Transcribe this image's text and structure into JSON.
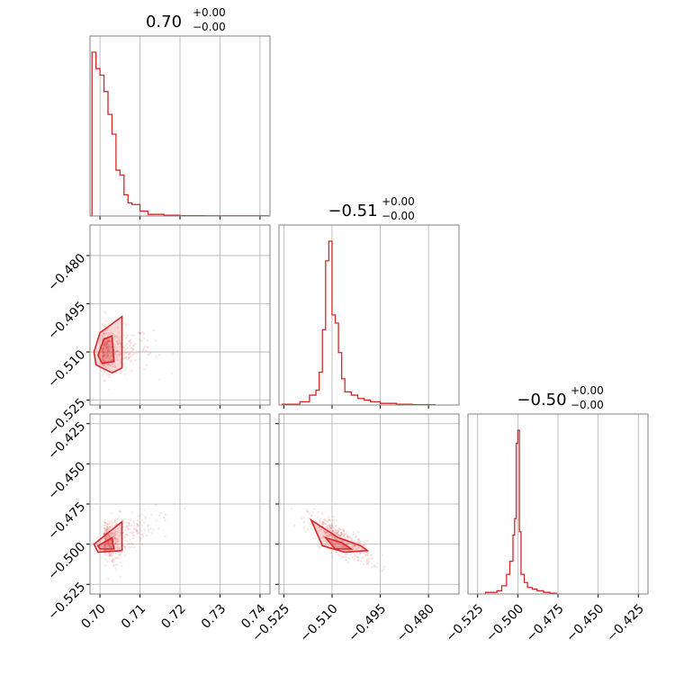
{
  "chart_data": {
    "type": "corner",
    "color": "#d62728",
    "parameters": [
      {
        "title": {
          "value": "0.70",
          "plus": "+0.00",
          "minus": "−0.00"
        },
        "range": [
          0.6975,
          0.7425
        ],
        "ticks": [
          0.7,
          0.71,
          0.72,
          0.73,
          0.74
        ],
        "tick_labels": [
          "0.70",
          "0.71",
          "0.72",
          "0.73",
          "0.74"
        ],
        "hist": {
          "edges": [
            0.698,
            0.699,
            0.7,
            0.701,
            0.702,
            0.703,
            0.704,
            0.705,
            0.706,
            0.707,
            0.708,
            0.71,
            0.712,
            0.714,
            0.716,
            0.72,
            0.726,
            0.742
          ],
          "counts": [
            1.0,
            0.9,
            0.86,
            0.76,
            0.62,
            0.5,
            0.28,
            0.25,
            0.13,
            0.08,
            0.07,
            0.03,
            0.01,
            0.01,
            0.005,
            0.002,
            0.001
          ]
        }
      },
      {
        "title": {
          "value": "−0.51",
          "plus": "+0.00",
          "minus": "−0.00"
        },
        "range": [
          -0.5265,
          -0.4705
        ],
        "ticks": [
          -0.525,
          -0.51,
          -0.495,
          -0.48
        ],
        "tick_labels": [
          "−0.525",
          "−0.510",
          "−0.495",
          "−0.480"
        ],
        "hist": {
          "edges": [
            -0.5255,
            -0.52,
            -0.517,
            -0.515,
            -0.514,
            -0.513,
            -0.512,
            -0.511,
            -0.51,
            -0.509,
            -0.508,
            -0.507,
            -0.506,
            -0.504,
            -0.502,
            -0.5,
            -0.498,
            -0.495,
            -0.49,
            -0.485,
            -0.478
          ],
          "counts": [
            0.005,
            0.02,
            0.06,
            0.09,
            0.2,
            0.46,
            0.88,
            1.0,
            0.55,
            0.5,
            0.32,
            0.16,
            0.08,
            0.06,
            0.04,
            0.03,
            0.02,
            0.01,
            0.005,
            0.002
          ]
        }
      },
      {
        "title": {
          "value": "−0.50",
          "plus": "+0.00",
          "minus": "−0.00"
        },
        "range": [
          -0.531,
          -0.419
        ],
        "ticks": [
          -0.525,
          -0.5,
          -0.475,
          -0.45,
          -0.425
        ],
        "tick_labels": [
          "−0.525",
          "−0.500",
          "−0.475",
          "−0.450",
          "−0.425"
        ],
        "hist": {
          "edges": [
            -0.52,
            -0.513,
            -0.51,
            -0.507,
            -0.505,
            -0.503,
            -0.502,
            -0.501,
            -0.5,
            -0.499,
            -0.498,
            -0.496,
            -0.494,
            -0.491,
            -0.488,
            -0.484,
            -0.48,
            -0.476
          ],
          "counts": [
            0.01,
            0.02,
            0.05,
            0.12,
            0.2,
            0.36,
            0.46,
            0.92,
            1.0,
            0.38,
            0.12,
            0.07,
            0.04,
            0.03,
            0.02,
            0.01,
            0.005
          ]
        }
      }
    ],
    "pairs": [
      {
        "row": 1,
        "col": 0,
        "cloud_center": [
          0.7005,
          -0.5095
        ],
        "cloud_spread": [
          0.004,
          0.006
        ],
        "contour_outer": [
          [
            0.6985,
            -0.51
          ],
          [
            0.7,
            -0.504
          ],
          [
            0.7055,
            -0.499
          ],
          [
            0.7055,
            -0.515
          ],
          [
            0.703,
            -0.5165
          ],
          [
            0.699,
            -0.514
          ]
        ],
        "contour_inner": [
          [
            0.6995,
            -0.511
          ],
          [
            0.701,
            -0.506
          ],
          [
            0.703,
            -0.505
          ],
          [
            0.7035,
            -0.513
          ],
          [
            0.7005,
            -0.5135
          ]
        ]
      },
      {
        "row": 2,
        "col": 0,
        "cloud_center": [
          0.701,
          -0.496
        ],
        "cloud_spread": [
          0.004,
          0.012
        ],
        "contour_outer": [
          [
            0.6985,
            -0.5
          ],
          [
            0.704,
            -0.489
          ],
          [
            0.7055,
            -0.486
          ],
          [
            0.7055,
            -0.504
          ],
          [
            0.6995,
            -0.505
          ]
        ],
        "contour_inner": [
          [
            0.6995,
            -0.501
          ],
          [
            0.703,
            -0.496
          ],
          [
            0.7035,
            -0.503
          ],
          [
            0.7,
            -0.503
          ]
        ]
      },
      {
        "row": 2,
        "col": 1,
        "cloud_center": [
          -0.5075,
          -0.497
        ],
        "cloud_spread": [
          0.005,
          0.012
        ],
        "contour_outer": [
          [
            -0.5165,
            -0.485
          ],
          [
            -0.508,
            -0.496
          ],
          [
            -0.501,
            -0.501
          ],
          [
            -0.499,
            -0.504
          ],
          [
            -0.506,
            -0.505
          ],
          [
            -0.513,
            -0.501
          ]
        ],
        "contour_inner": [
          [
            -0.512,
            -0.496
          ],
          [
            -0.507,
            -0.499
          ],
          [
            -0.504,
            -0.503
          ],
          [
            -0.509,
            -0.503
          ]
        ]
      }
    ]
  }
}
